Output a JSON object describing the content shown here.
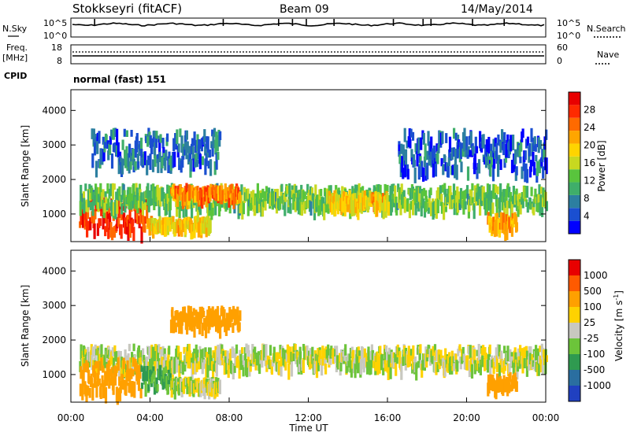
{
  "header": {
    "station": "Stokkseyri (fitACF)",
    "beam": "Beam 09",
    "date": "14/May/2014",
    "cpid_mode": "normal (fast) 151"
  },
  "labels": {
    "nsky": "N.Sky",
    "nsearch": "N.Search",
    "freq_top": "Freq.",
    "freq_unit": "[MHz]",
    "nave": "Nave",
    "cpid": "CPID",
    "time_axis": "Time UT",
    "slant_range": "Slant Range [km]",
    "power": "Power [dB]",
    "velocity": "Velocity [m s",
    "velocity_sup": "-1",
    "velocity_close": "]"
  },
  "noise_panel": {
    "left_ticks": [
      "10^5",
      "10^0"
    ],
    "right_ticks": [
      "10^5",
      "10^0"
    ]
  },
  "freq_panel": {
    "left_ticks": [
      "18",
      "8"
    ],
    "right_ticks": [
      "60",
      "0"
    ],
    "freq_mhz": 10.5,
    "nave": 25
  },
  "chart_data": [
    {
      "type": "heatmap",
      "title": "Power",
      "xlabel": "Time UT",
      "ylabel": "Slant Range [km]",
      "xlim": [
        "00:00",
        "24:00"
      ],
      "ylim": [
        200,
        4600
      ],
      "x_ticks": [
        "00:00",
        "04:00",
        "08:00",
        "12:00",
        "16:00",
        "20:00",
        "00:00"
      ],
      "y_ticks": [
        "1000",
        "2000",
        "3000",
        "4000"
      ],
      "colorbar": {
        "label": "Power [dB]",
        "ticks": [
          "4",
          "8",
          "12",
          "16",
          "20",
          "24",
          "28"
        ],
        "range": [
          0,
          30
        ],
        "colors": [
          "#0000ff",
          "#1a4fd0",
          "#2c7fa0",
          "#3fae6a",
          "#59c43d",
          "#c8d820",
          "#ffd400",
          "#ffa500",
          "#ff6a00",
          "#ff2a00",
          "#e80000"
        ]
      },
      "regions": [
        {
          "t0": 0.4,
          "t1": 3.8,
          "r0": 600,
          "r1": 1600,
          "value": 26
        },
        {
          "t0": 3.8,
          "t1": 7.0,
          "r0": 700,
          "r1": 950,
          "value": 18
        },
        {
          "t0": 0.4,
          "t1": 24.0,
          "r0": 1300,
          "r1": 1900,
          "value": 12
        },
        {
          "t0": 5.0,
          "t1": 8.5,
          "r0": 1600,
          "r1": 1900,
          "value": 22
        },
        {
          "t0": 13.0,
          "t1": 16.0,
          "r0": 1300,
          "r1": 1700,
          "value": 18
        },
        {
          "t0": 1.0,
          "t1": 7.5,
          "r0": 2500,
          "r1": 3500,
          "value": 6
        },
        {
          "t0": 16.5,
          "t1": 24.0,
          "r0": 2300,
          "r1": 3500,
          "value": 5
        },
        {
          "t0": 21.0,
          "t1": 22.5,
          "r0": 700,
          "r1": 1100,
          "value": 20
        }
      ]
    },
    {
      "type": "heatmap",
      "title": "Velocity",
      "xlabel": "Time UT",
      "ylabel": "Slant Range [km]",
      "xlim": [
        "00:00",
        "24:00"
      ],
      "ylim": [
        200,
        4600
      ],
      "x_ticks": [
        "00:00",
        "04:00",
        "08:00",
        "12:00",
        "16:00",
        "20:00",
        "00:00"
      ],
      "y_ticks": [
        "1000",
        "2000",
        "3000",
        "4000"
      ],
      "colorbar": {
        "label": "Velocity [m s^-1]",
        "ticks": [
          "1000",
          "500",
          "100",
          "25",
          "-25",
          "-100",
          "-500",
          "-1000"
        ],
        "colors": [
          "#2040c0",
          "#2a6ea0",
          "#2f9a50",
          "#6cc43a",
          "#c8c8c0",
          "#ffd200",
          "#ffa000",
          "#ff5a00",
          "#e80000"
        ]
      },
      "regions": [
        {
          "t0": 0.4,
          "t1": 24.0,
          "r0": 1300,
          "r1": 1900,
          "value": 0
        },
        {
          "t0": 0.4,
          "t1": 3.5,
          "r0": 600,
          "r1": 1500,
          "value": -300
        },
        {
          "t0": 3.5,
          "t1": 5.0,
          "r0": 700,
          "r1": 1300,
          "value": 150
        },
        {
          "t0": 5.0,
          "t1": 7.5,
          "r0": 700,
          "r1": 950,
          "value": 0
        },
        {
          "t0": 5.0,
          "t1": 8.5,
          "r0": 2500,
          "r1": 3000,
          "value": -300
        },
        {
          "t0": 21.0,
          "t1": 22.5,
          "r0": 700,
          "r1": 1100,
          "value": -400
        }
      ]
    }
  ]
}
